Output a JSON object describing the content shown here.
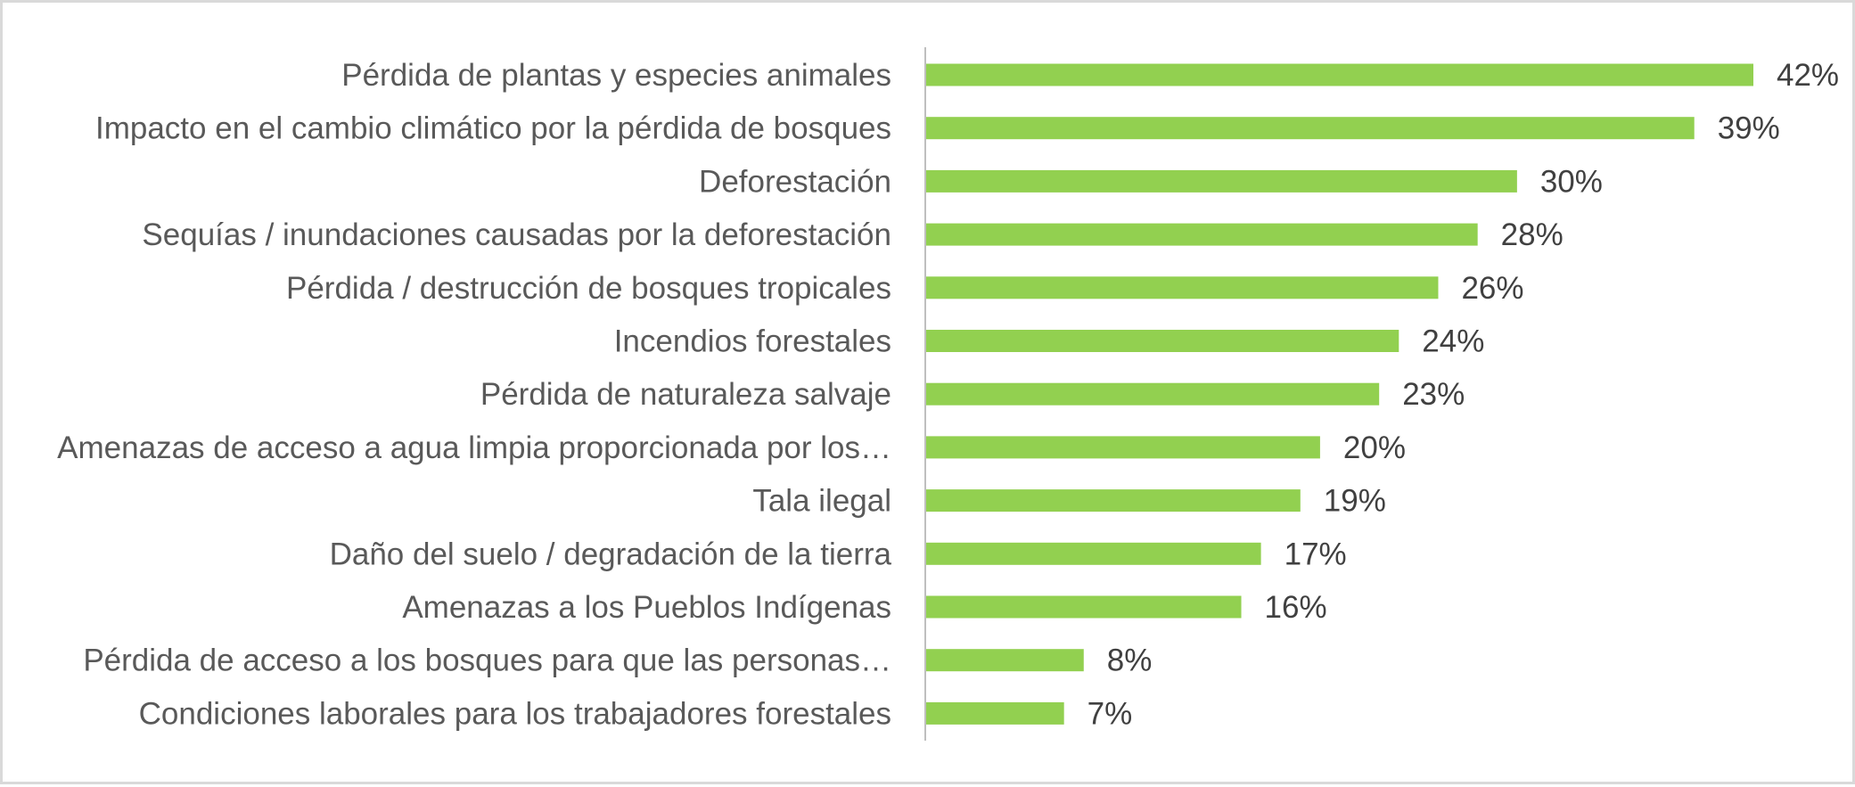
{
  "chart_data": {
    "type": "bar",
    "orientation": "horizontal",
    "title": "",
    "xlabel": "",
    "ylabel": "",
    "xlim": [
      0,
      42
    ],
    "grid": false,
    "legend": "none",
    "bar_color": "#92d050",
    "categories": [
      "Pérdida de plantas y especies animales",
      "Impacto en el cambio climático por la pérdida de bosques",
      "Deforestación",
      "Sequías / inundaciones causadas por la deforestación",
      "Pérdida / destrucción de bosques tropicales",
      "Incendios forestales",
      "Pérdida de naturaleza salvaje",
      "Amenazas de acceso a agua limpia proporcionada por los…",
      "Tala ilegal",
      "Daño del suelo / degradación de la tierra",
      "Amenazas a los Pueblos Indígenas",
      "Pérdida de acceso a los bosques para que las personas…",
      "Condiciones laborales para los trabajadores forestales"
    ],
    "values": [
      42,
      39,
      30,
      28,
      26,
      24,
      23,
      20,
      19,
      17,
      16,
      8,
      7
    ],
    "data_labels": [
      "42%",
      "39%",
      "30%",
      "28%",
      "26%",
      "24%",
      "23%",
      "20%",
      "19%",
      "17%",
      "16%",
      "8%",
      "7%"
    ]
  }
}
